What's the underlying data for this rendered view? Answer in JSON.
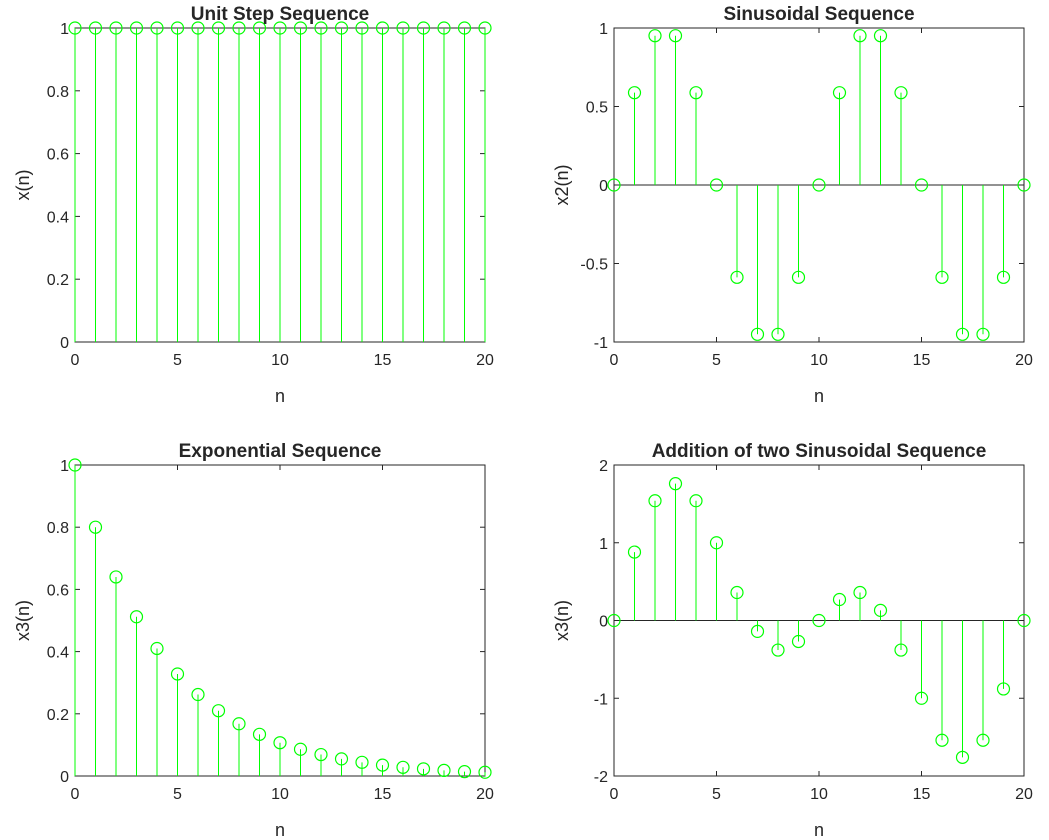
{
  "colors": {
    "stem": "#00ff00",
    "axis": "#262626",
    "background": "#ffffff"
  },
  "chart_data": [
    {
      "type": "stem",
      "title": "Unit Step Sequence",
      "xlabel": "n",
      "ylabel": "x(n)",
      "xlim": [
        0,
        20
      ],
      "ylim": [
        0,
        1
      ],
      "xticks": [
        0,
        5,
        10,
        15,
        20
      ],
      "yticks": [
        0,
        0.2,
        0.4,
        0.6,
        0.8,
        1
      ],
      "x": [
        0,
        1,
        2,
        3,
        4,
        5,
        6,
        7,
        8,
        9,
        10,
        11,
        12,
        13,
        14,
        15,
        16,
        17,
        18,
        19,
        20
      ],
      "y": [
        1,
        1,
        1,
        1,
        1,
        1,
        1,
        1,
        1,
        1,
        1,
        1,
        1,
        1,
        1,
        1,
        1,
        1,
        1,
        1,
        1
      ]
    },
    {
      "type": "stem",
      "title": "Sinusoidal Sequence",
      "xlabel": "n",
      "ylabel": "x2(n)",
      "xlim": [
        0,
        20
      ],
      "ylim": [
        -1,
        1
      ],
      "xticks": [
        0,
        5,
        10,
        15,
        20
      ],
      "yticks": [
        -1,
        -0.5,
        0,
        0.5,
        1
      ],
      "x": [
        0,
        1,
        2,
        3,
        4,
        5,
        6,
        7,
        8,
        9,
        10,
        11,
        12,
        13,
        14,
        15,
        16,
        17,
        18,
        19,
        20
      ],
      "y": [
        0,
        0.588,
        0.951,
        0.951,
        0.588,
        0,
        -0.588,
        -0.951,
        -0.951,
        -0.588,
        0,
        0.588,
        0.951,
        0.951,
        0.588,
        0,
        -0.588,
        -0.951,
        -0.951,
        -0.588,
        0
      ]
    },
    {
      "type": "stem",
      "title": "Exponential Sequence",
      "xlabel": "n",
      "ylabel": "x3(n)",
      "xlim": [
        0,
        20
      ],
      "ylim": [
        0,
        1
      ],
      "xticks": [
        0,
        5,
        10,
        15,
        20
      ],
      "yticks": [
        0,
        0.2,
        0.4,
        0.6,
        0.8,
        1
      ],
      "x": [
        0,
        1,
        2,
        3,
        4,
        5,
        6,
        7,
        8,
        9,
        10,
        11,
        12,
        13,
        14,
        15,
        16,
        17,
        18,
        19,
        20
      ],
      "y": [
        1,
        0.8,
        0.64,
        0.512,
        0.41,
        0.328,
        0.262,
        0.21,
        0.168,
        0.134,
        0.107,
        0.086,
        0.069,
        0.055,
        0.044,
        0.035,
        0.028,
        0.023,
        0.018,
        0.014,
        0.012
      ]
    },
    {
      "type": "stem",
      "title": "Addition of two Sinusoidal Sequence",
      "xlabel": "n",
      "ylabel": "x3(n)",
      "xlim": [
        0,
        20
      ],
      "ylim": [
        -2,
        2
      ],
      "xticks": [
        0,
        5,
        10,
        15,
        20
      ],
      "yticks": [
        -2,
        -1,
        0,
        1,
        2
      ],
      "x": [
        0,
        1,
        2,
        3,
        4,
        5,
        6,
        7,
        8,
        9,
        10,
        11,
        12,
        13,
        14,
        15,
        16,
        17,
        18,
        19,
        20
      ],
      "y": [
        0,
        0.88,
        1.54,
        1.76,
        1.54,
        1.0,
        0.36,
        -0.14,
        -0.38,
        -0.27,
        0,
        0.27,
        0.36,
        0.13,
        -0.38,
        -1.0,
        -1.54,
        -1.76,
        -1.54,
        -0.88,
        0
      ]
    }
  ]
}
